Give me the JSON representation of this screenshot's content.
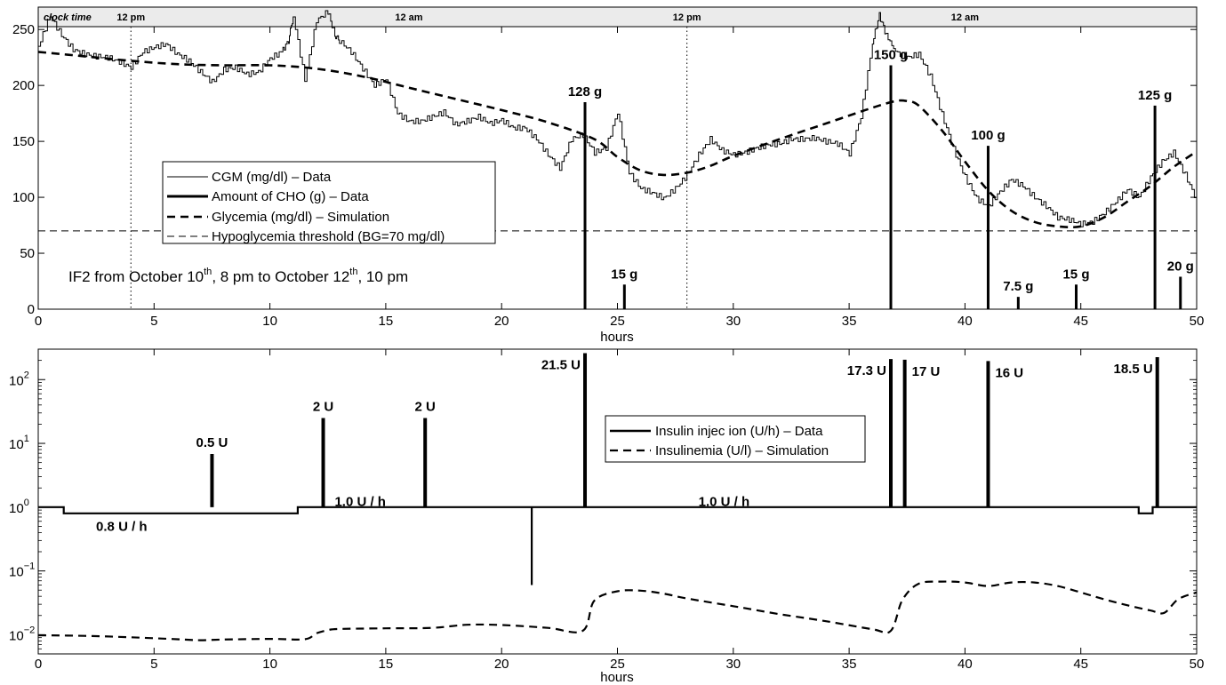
{
  "chart_data": [
    {
      "type": "line",
      "xlabel": "hours",
      "xlim": [
        0,
        50
      ],
      "ylim": [
        0,
        270
      ],
      "xticks": [
        0,
        5,
        10,
        15,
        20,
        25,
        30,
        35,
        40,
        45,
        50
      ],
      "yticks": [
        0,
        50,
        100,
        150,
        200,
        250
      ],
      "clock_bar": {
        "label": "clock time",
        "marks": [
          {
            "x": 4,
            "label": "12 pm",
            "dotted_line": true
          },
          {
            "x": 16,
            "label": "12 am",
            "dotted_line": false
          },
          {
            "x": 28,
            "label": "12 pm",
            "dotted_line": true
          },
          {
            "x": 40,
            "label": "12 am",
            "dotted_line": false
          }
        ]
      },
      "hypo_threshold": 70,
      "note": {
        "prefix": "IF2 from October 10",
        "sup1": "th",
        "middle": ", 8 pm to October 12",
        "sup2": "th",
        "suffix": ", 10 pm"
      },
      "legend": [
        {
          "label": "CGM (mg/dl) – Data",
          "style": "thin"
        },
        {
          "label": "Amount of CHO (g) – Data",
          "style": "thick"
        },
        {
          "label": "Glycemia (mg/dl) – Simulation",
          "style": "dashed"
        },
        {
          "label": "Hypoglycemia threshold (BG=70 mg/dl)",
          "style": "thin-dashed"
        }
      ],
      "cgm": {
        "x": [
          0,
          0.5,
          1,
          1.5,
          2,
          2.5,
          3,
          3.5,
          4,
          4.5,
          5,
          5.5,
          6,
          6.5,
          7,
          7.5,
          8,
          8.5,
          9,
          9.5,
          10,
          10.5,
          10.8,
          11,
          11.5,
          12,
          12.5,
          12.8,
          13,
          13.5,
          14,
          14.5,
          15,
          15.5,
          16,
          16.5,
          17,
          17.5,
          18,
          18.5,
          19,
          19.5,
          20,
          20.5,
          21,
          21.5,
          22,
          22.5,
          23,
          23.5,
          24,
          24.5,
          25,
          25.5,
          26,
          26.5,
          27,
          27.5,
          28,
          28.5,
          29,
          29.5,
          30,
          30.5,
          31,
          31.5,
          32,
          32.5,
          33,
          33.5,
          34,
          34.5,
          35,
          35.5,
          36,
          36.3,
          36.6,
          37,
          37.5,
          38,
          38.5,
          39,
          39.5,
          40,
          40.5,
          41,
          41.5,
          42,
          42.5,
          43,
          43.5,
          44,
          44.5,
          45,
          45.5,
          46,
          46.5,
          47,
          47.5,
          48,
          48.5,
          49,
          49.5,
          50
        ],
        "y": [
          235,
          262,
          245,
          232,
          228,
          226,
          225,
          221,
          216,
          230,
          234,
          237,
          228,
          222,
          212,
          203,
          214,
          216,
          210,
          212,
          224,
          230,
          240,
          262,
          205,
          258,
          266,
          245,
          240,
          230,
          215,
          200,
          206,
          175,
          168,
          168,
          172,
          176,
          165,
          168,
          172,
          166,
          169,
          162,
          162,
          152,
          138,
          126,
          152,
          156,
          140,
          144,
          176,
          122,
          108,
          104,
          99,
          108,
          120,
          138,
          152,
          142,
          138,
          140,
          144,
          147,
          148,
          152,
          152,
          153,
          150,
          148,
          139,
          172,
          238,
          263,
          245,
          230,
          225,
          228,
          208,
          174,
          143,
          118,
          99,
          92,
          105,
          116,
          110,
          100,
          92,
          82,
          80,
          76,
          78,
          86,
          96,
          107,
          100,
          118,
          132,
          140,
          120,
          97
        ]
      },
      "glycemia_sim": {
        "x": [
          0,
          2,
          4,
          6,
          8,
          10,
          12,
          14,
          16,
          18,
          20,
          22,
          24,
          25,
          26,
          27,
          28,
          29,
          30,
          32,
          34,
          36,
          37,
          37.5,
          38,
          39,
          40,
          41,
          42,
          43,
          44,
          45,
          46,
          47,
          48,
          49,
          50
        ],
        "y": [
          230,
          226,
          222,
          219,
          218,
          218,
          215,
          208,
          198,
          188,
          178,
          167,
          152,
          136,
          124,
          120,
          122,
          128,
          137,
          152,
          166,
          180,
          186,
          186,
          182,
          160,
          132,
          106,
          88,
          78,
          74,
          74,
          82,
          96,
          110,
          127,
          141
        ]
      },
      "cho_bars": [
        {
          "x": 23.6,
          "value": 185,
          "label": "128 g"
        },
        {
          "x": 25.3,
          "value": 22,
          "label": "15 g"
        },
        {
          "x": 36.8,
          "value": 218,
          "label": "150 g"
        },
        {
          "x": 41.0,
          "value": 146,
          "label": "100 g"
        },
        {
          "x": 42.3,
          "value": 11,
          "label": "7.5 g"
        },
        {
          "x": 44.8,
          "value": 22,
          "label": "15 g"
        },
        {
          "x": 48.2,
          "value": 182,
          "label": "125 g"
        },
        {
          "x": 49.3,
          "value": 29,
          "label": "20 g"
        }
      ]
    },
    {
      "type": "line",
      "xlabel": "hours",
      "xlim": [
        0,
        50
      ],
      "y_scale": "log",
      "ylim": [
        0.005,
        300
      ],
      "xticks": [
        0,
        5,
        10,
        15,
        20,
        25,
        30,
        35,
        40,
        45,
        50
      ],
      "yticks": [
        {
          "base": "10",
          "exp": "2",
          "value": 100
        },
        {
          "base": "10",
          "exp": "1",
          "value": 10
        },
        {
          "base": "10",
          "exp": "0",
          "value": 1
        },
        {
          "base": "10",
          "exp": "−1",
          "value": 0.1
        },
        {
          "base": "10",
          "exp": "−2",
          "value": 0.01
        }
      ],
      "legend": [
        {
          "label": "Insulin injec ion (U/h) – Data",
          "style": "thick"
        },
        {
          "label": "Insulinemia (U/l) – Simulation",
          "style": "dashed"
        }
      ],
      "basal_labels": [
        {
          "x": 3.6,
          "y": 0.5,
          "label": "0.8 U / h"
        },
        {
          "x": 13.9,
          "y": 1.22,
          "label": "1.0 U / h"
        },
        {
          "x": 29.6,
          "y": 1.22,
          "label": "1.0 U / h"
        }
      ],
      "insulin_basal": {
        "x": [
          0,
          1.1,
          1.1,
          11.2,
          11.2,
          21.3,
          21.3,
          21.3,
          47.5,
          47.5,
          48.1,
          48.1,
          50
        ],
        "y": [
          1.0,
          1.0,
          0.8,
          0.8,
          1.0,
          1.0,
          0.06,
          1.0,
          1.0,
          0.8,
          0.8,
          1.0,
          1.0
        ]
      },
      "insulin_bolus": [
        {
          "x": 7.5,
          "value": 6.8,
          "label": "0.5 U"
        },
        {
          "x": 12.3,
          "value": 25,
          "label": "2 U"
        },
        {
          "x": 16.7,
          "value": 25,
          "label": "2 U"
        },
        {
          "x": 23.6,
          "value": 260,
          "label": "21.5 U"
        },
        {
          "x": 36.8,
          "value": 210,
          "label": "17.3 U"
        },
        {
          "x": 37.4,
          "value": 205,
          "label": "17 U"
        },
        {
          "x": 41.0,
          "value": 195,
          "label": "16 U"
        },
        {
          "x": 48.3,
          "value": 225,
          "label": "18.5 U"
        }
      ],
      "insulinemia_sim": {
        "x": [
          0,
          2,
          4,
          6,
          7,
          8,
          10,
          11.5,
          12,
          12.5,
          13,
          15,
          17,
          18.5,
          20,
          22,
          23.5,
          24,
          25,
          26,
          27,
          28,
          30,
          32,
          34,
          36,
          36.8,
          37.3,
          38,
          39,
          40,
          41,
          42,
          43,
          44,
          45,
          46,
          47,
          48,
          48.6,
          49.2,
          50
        ],
        "y": [
          0.0098,
          0.0096,
          0.0091,
          0.0085,
          0.0082,
          0.0084,
          0.0086,
          0.0085,
          0.0105,
          0.0118,
          0.0123,
          0.0126,
          0.0128,
          0.0143,
          0.0142,
          0.0128,
          0.0115,
          0.034,
          0.048,
          0.049,
          0.044,
          0.037,
          0.028,
          0.021,
          0.0163,
          0.0122,
          0.0115,
          0.035,
          0.063,
          0.068,
          0.066,
          0.058,
          0.066,
          0.066,
          0.058,
          0.046,
          0.036,
          0.029,
          0.024,
          0.022,
          0.036,
          0.046
        ]
      }
    }
  ]
}
